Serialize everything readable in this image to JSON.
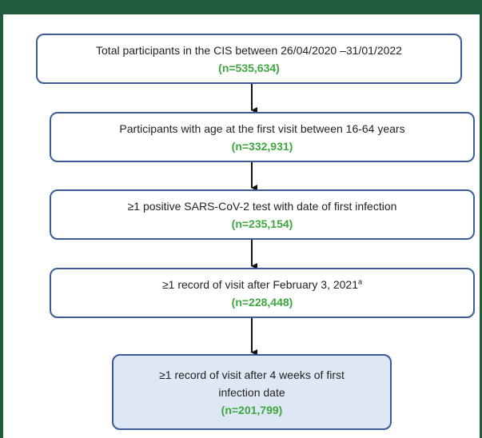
{
  "nodes": [
    {
      "text": "Total participants in the CIS between 26/04/2020 –31/01/2022",
      "count": "(n=535,634)"
    },
    {
      "text": "Participants with age at the first visit between 16-64 years",
      "count": "(n=332,931)"
    },
    {
      "text": "≥1 positive SARS-CoV-2 test with date of first infection",
      "count": "(n=235,154)"
    },
    {
      "text": "≥1 record of visit after February 3, 2021",
      "note_marker": "a",
      "count": "(n=228,448)"
    },
    {
      "text": "≥1 record of visit after 4 weeks of first infection date",
      "count": "(n=201,799)"
    }
  ]
}
